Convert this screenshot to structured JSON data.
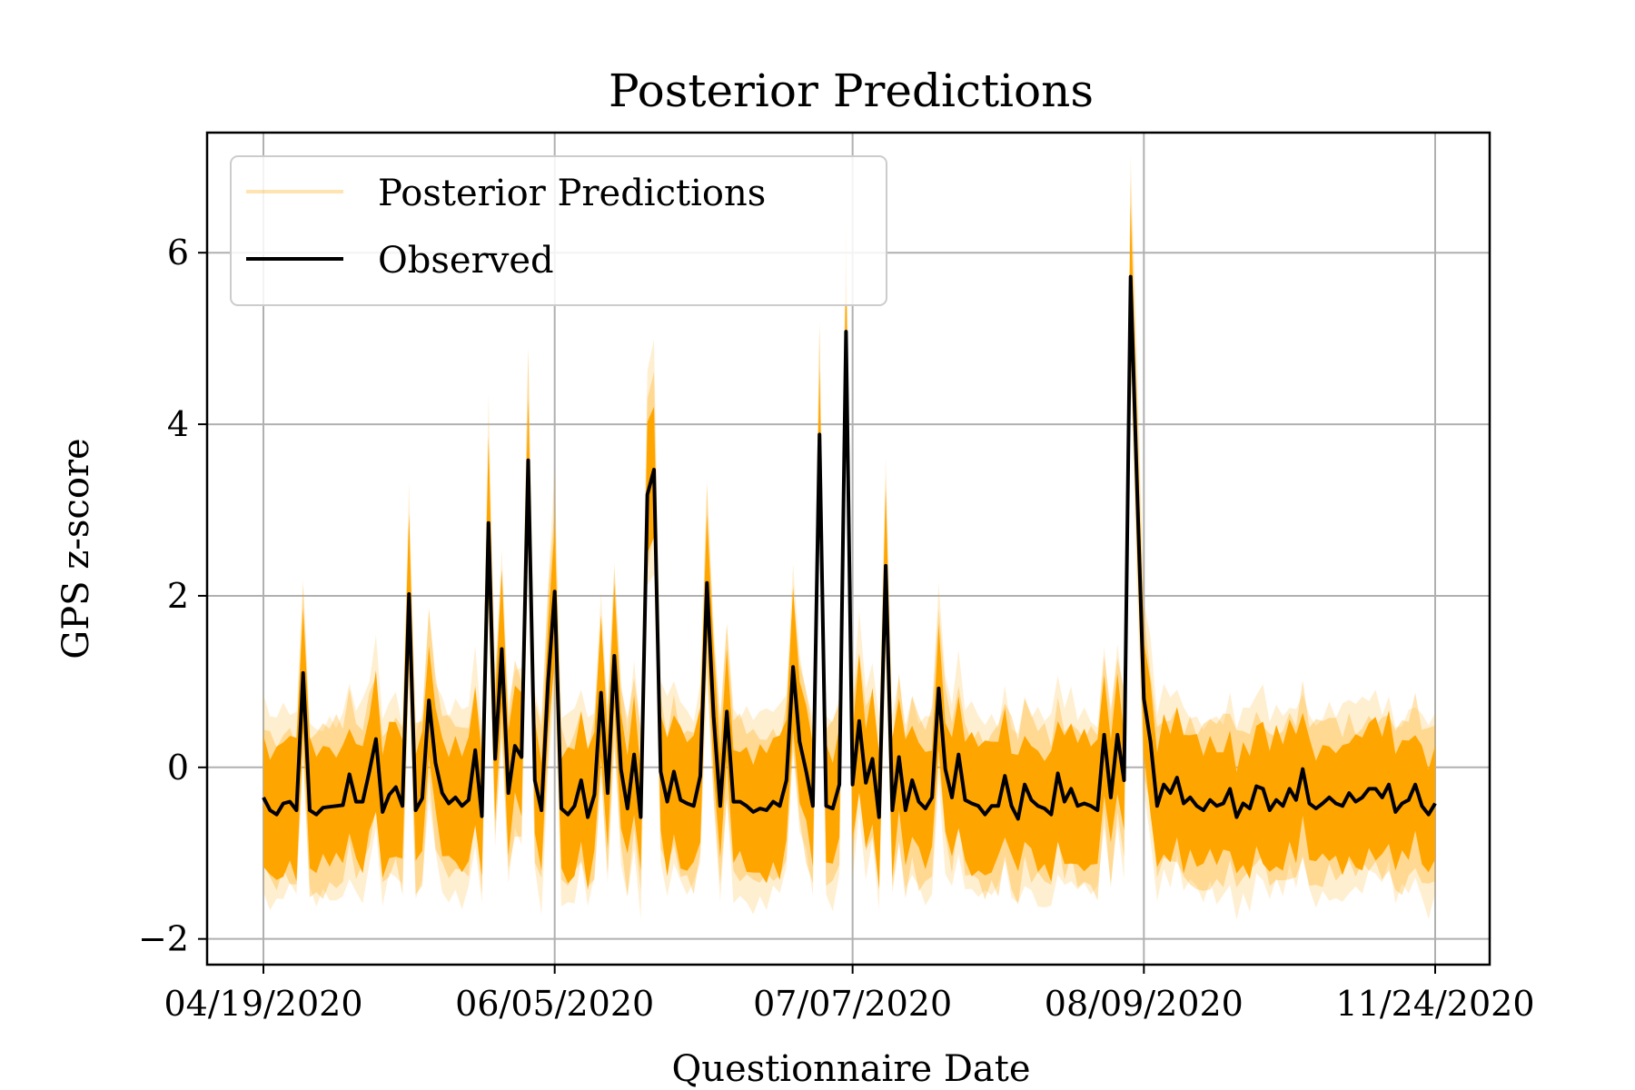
{
  "chart_data": {
    "type": "line",
    "title": "Posterior Predictions",
    "xlabel": "Questionnaire Date",
    "ylabel": "GPS z-score",
    "x_tick_labels": [
      "04/19/2020",
      "06/05/2020",
      "07/07/2020",
      "08/09/2020",
      "11/24/2020"
    ],
    "x_tick_index": [
      0,
      44,
      89,
      133,
      177
    ],
    "yticks": [
      -2,
      0,
      2,
      4,
      6
    ],
    "ytick_labels": [
      "−2",
      "0",
      "2",
      "4",
      "6"
    ],
    "ylim": [
      -2.3,
      7.4
    ],
    "grid": true,
    "legend": {
      "position": "top-left",
      "entries": [
        "Posterior Predictions",
        "Observed"
      ]
    },
    "colors": {
      "posterior": "#FFA500",
      "observed": "#000000"
    },
    "series": [
      {
        "name": "Observed",
        "values": [
          -0.35,
          -0.5,
          -0.55,
          -0.42,
          -0.4,
          -0.5,
          1.1,
          -0.5,
          -0.55,
          -0.47,
          -0.46,
          -0.45,
          -0.44,
          -0.08,
          -0.4,
          -0.4,
          -0.05,
          0.33,
          -0.52,
          -0.32,
          -0.23,
          -0.45,
          2.02,
          -0.5,
          -0.36,
          0.78,
          0.05,
          -0.3,
          -0.42,
          -0.35,
          -0.45,
          -0.38,
          0.2,
          -0.57,
          2.85,
          0.1,
          1.38,
          -0.3,
          0.25,
          0.12,
          3.58,
          -0.15,
          -0.5,
          1.0,
          2.05,
          -0.48,
          -0.55,
          -0.45,
          -0.15,
          -0.58,
          -0.32,
          0.87,
          -0.3,
          1.3,
          -0.02,
          -0.48,
          0.15,
          -0.58,
          3.18,
          3.47,
          -0.05,
          -0.4,
          -0.05,
          -0.38,
          -0.42,
          -0.45,
          -0.1,
          2.15,
          0.6,
          -0.45,
          0.65,
          -0.4,
          -0.4,
          -0.45,
          -0.52,
          -0.48,
          -0.5,
          -0.4,
          -0.45,
          -0.15,
          1.17,
          0.3,
          -0.05,
          -0.45,
          3.88,
          -0.45,
          -0.48,
          -0.2,
          5.08,
          -0.2,
          0.54,
          -0.18,
          0.1,
          -0.58,
          2.35,
          -0.5,
          0.12,
          -0.5,
          -0.15,
          -0.4,
          -0.48,
          -0.35,
          0.92,
          -0.02,
          -0.35,
          0.15,
          -0.38,
          -0.42,
          -0.45,
          -0.55,
          -0.45,
          -0.45,
          -0.1,
          -0.45,
          -0.6,
          -0.2,
          -0.38,
          -0.45,
          -0.48,
          -0.55,
          -0.07,
          -0.4,
          -0.25,
          -0.45,
          -0.42,
          -0.45,
          -0.5,
          0.38,
          -0.35,
          0.38,
          -0.15,
          5.72,
          3.2,
          0.8,
          0.3,
          -0.45,
          -0.2,
          -0.3,
          -0.12,
          -0.42,
          -0.35,
          -0.45,
          -0.5,
          -0.38,
          -0.45,
          -0.42,
          -0.25,
          -0.58,
          -0.42,
          -0.48,
          -0.22,
          -0.25,
          -0.5,
          -0.38,
          -0.45,
          -0.25,
          -0.38,
          -0.02,
          -0.42,
          -0.48,
          -0.42,
          -0.35,
          -0.42,
          -0.45,
          -0.3,
          -0.4,
          -0.35,
          -0.25,
          -0.25,
          -0.35,
          -0.2,
          -0.52,
          -0.42,
          -0.38,
          -0.2,
          -0.45,
          -0.55,
          -0.42
        ]
      },
      {
        "name": "Posterior Predictions",
        "values": [
          -0.35,
          -0.5,
          -0.55,
          -0.42,
          -0.4,
          -0.5,
          1.1,
          -0.5,
          -0.55,
          -0.47,
          -0.46,
          -0.45,
          -0.44,
          -0.08,
          -0.4,
          -0.4,
          -0.05,
          0.33,
          -0.52,
          -0.32,
          -0.23,
          -0.45,
          2.02,
          -0.5,
          -0.36,
          0.78,
          0.05,
          -0.3,
          -0.42,
          -0.35,
          -0.45,
          -0.38,
          0.2,
          -0.57,
          2.85,
          0.1,
          1.38,
          -0.3,
          0.25,
          0.12,
          3.58,
          -0.15,
          -0.5,
          1.0,
          2.05,
          -0.48,
          -0.55,
          -0.45,
          -0.15,
          -0.58,
          -0.32,
          0.87,
          -0.3,
          1.3,
          -0.02,
          -0.48,
          0.15,
          -0.58,
          3.18,
          3.47,
          -0.05,
          -0.4,
          -0.05,
          -0.38,
          -0.42,
          -0.45,
          -0.1,
          2.15,
          0.6,
          -0.45,
          0.65,
          -0.4,
          -0.4,
          -0.45,
          -0.52,
          -0.48,
          -0.5,
          -0.4,
          -0.45,
          -0.15,
          1.17,
          0.3,
          -0.05,
          -0.45,
          3.88,
          -0.45,
          -0.48,
          -0.2,
          5.08,
          -0.2,
          0.54,
          -0.18,
          0.1,
          -0.58,
          2.35,
          -0.5,
          0.12,
          -0.5,
          -0.15,
          -0.4,
          -0.48,
          -0.35,
          0.92,
          -0.02,
          -0.35,
          0.15,
          -0.38,
          -0.42,
          -0.45,
          -0.55,
          -0.45,
          -0.45,
          -0.1,
          -0.45,
          -0.6,
          -0.2,
          -0.38,
          -0.45,
          -0.48,
          -0.55,
          -0.07,
          -0.4,
          -0.25,
          -0.45,
          -0.42,
          -0.45,
          -0.5,
          0.38,
          -0.35,
          0.38,
          -0.15,
          5.72,
          3.2,
          0.8,
          0.3,
          -0.45,
          -0.2,
          -0.3,
          -0.12,
          -0.42,
          -0.35,
          -0.45,
          -0.5,
          -0.38,
          -0.45,
          -0.42,
          -0.25,
          -0.58,
          -0.42,
          -0.48,
          -0.22,
          -0.25,
          -0.5,
          -0.38,
          -0.45,
          -0.25,
          -0.38,
          -0.02,
          -0.42,
          -0.48,
          -0.42,
          -0.35,
          -0.42,
          -0.45,
          -0.3,
          -0.4,
          -0.35,
          -0.25,
          -0.25,
          -0.35,
          -0.2,
          -0.52,
          -0.42,
          -0.38,
          -0.2,
          -0.45,
          -0.55,
          -0.42
        ],
        "band_inner": 0.7,
        "band_outer": 1.05
      }
    ]
  }
}
